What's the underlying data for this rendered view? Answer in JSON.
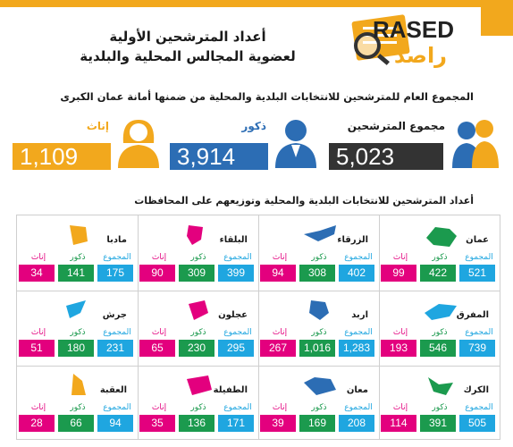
{
  "colors": {
    "accent": "#f2a81d",
    "total": "#1fa6e0",
    "males": "#1b9a4e",
    "females": "#e3007e",
    "summary_total": "#333333",
    "summary_males": "#2c6db4",
    "summary_females": "#f2a81d"
  },
  "logo": {
    "en": "RASED",
    "ar": "راصد"
  },
  "title": {
    "line1": "أعداد المترشحين الأولية",
    "line2": "لعضوية المجالس المحلية والبلدية"
  },
  "summary": {
    "heading": "المجموع العام للمترشحين للانتخابات البلدية والمحلية من ضمنها أمانة عمان الكبرى",
    "total": {
      "label": "مجموع المترشحين",
      "value": "5,023",
      "icon": "people-pair-icon"
    },
    "males": {
      "label": "ذكور",
      "value": "3,914",
      "icon": "man-icon"
    },
    "females": {
      "label": "إناث",
      "value": "1,109",
      "icon": "woman-icon"
    }
  },
  "distribution": {
    "heading": "أعداد المترشحين للانتخابات البلدية والمحلية وتوزيعهم على المحافظات",
    "labels": {
      "total": "المجموع",
      "males": "ذكور",
      "females": "إناث"
    },
    "governorates": [
      {
        "name": "عمان",
        "total": "521",
        "males": "422",
        "females": "99",
        "map_color": "#1b9a4e"
      },
      {
        "name": "الزرقاء",
        "total": "402",
        "males": "308",
        "females": "94",
        "map_color": "#2c6db4"
      },
      {
        "name": "البلقاء",
        "total": "399",
        "males": "309",
        "females": "90",
        "map_color": "#e3007e"
      },
      {
        "name": "مادبا",
        "total": "175",
        "males": "141",
        "females": "34",
        "map_color": "#f2a81d"
      },
      {
        "name": "المفرق",
        "total": "739",
        "males": "546",
        "females": "193",
        "map_color": "#1fa6e0"
      },
      {
        "name": "اربد",
        "total": "1,283",
        "males": "1,016",
        "females": "267",
        "map_color": "#2c6db4"
      },
      {
        "name": "عجلون",
        "total": "295",
        "males": "230",
        "females": "65",
        "map_color": "#e3007e"
      },
      {
        "name": "جرش",
        "total": "231",
        "males": "180",
        "females": "51",
        "map_color": "#1fa6e0"
      },
      {
        "name": "الكرك",
        "total": "505",
        "males": "391",
        "females": "114",
        "map_color": "#1b9a4e"
      },
      {
        "name": "معان",
        "total": "208",
        "males": "169",
        "females": "39",
        "map_color": "#2c6db4"
      },
      {
        "name": "الطفيلة",
        "total": "171",
        "males": "136",
        "females": "35",
        "map_color": "#e3007e"
      },
      {
        "name": "العقبة",
        "total": "94",
        "males": "66",
        "females": "28",
        "map_color": "#f2a81d"
      }
    ]
  }
}
